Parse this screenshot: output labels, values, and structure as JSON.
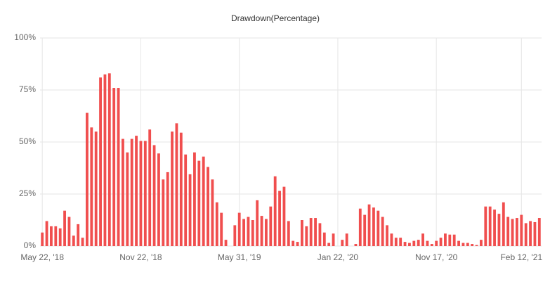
{
  "chart_data": {
    "type": "bar",
    "title": "Drawdown(Percentage)",
    "categories": [
      "May 22, '18",
      null,
      null,
      null,
      null,
      null,
      null,
      null,
      null,
      null,
      null,
      null,
      null,
      null,
      null,
      null,
      null,
      null,
      null,
      null,
      null,
      null,
      "Nov 22, '18",
      null,
      null,
      null,
      null,
      null,
      null,
      null,
      null,
      null,
      null,
      null,
      null,
      null,
      null,
      null,
      null,
      null,
      null,
      null,
      null,
      null,
      "May 31, '19",
      null,
      null,
      null,
      null,
      null,
      null,
      null,
      null,
      null,
      null,
      null,
      null,
      null,
      null,
      null,
      null,
      null,
      null,
      null,
      null,
      null,
      "Jan 22, '20",
      null,
      null,
      null,
      null,
      null,
      null,
      null,
      null,
      null,
      null,
      null,
      null,
      null,
      null,
      null,
      null,
      null,
      null,
      null,
      null,
      null,
      "Nov 17, '20",
      null,
      null,
      null,
      null,
      null,
      null,
      null,
      null,
      null,
      null,
      null,
      null,
      null,
      null,
      null,
      null,
      null,
      null,
      "Feb 12, '21",
      null,
      null,
      null,
      null
    ],
    "values": [
      6.5,
      12,
      9.5,
      9.5,
      8.5,
      17,
      14,
      5,
      10.5,
      4,
      64,
      57,
      55,
      81,
      82.5,
      83,
      76,
      76,
      51.5,
      45,
      51.5,
      53,
      50.5,
      50.5,
      56,
      48.5,
      44.5,
      32,
      35.5,
      55,
      59,
      54.5,
      44,
      34.5,
      45,
      41,
      43,
      38,
      32,
      21,
      16,
      3,
      0,
      10,
      16,
      13,
      14,
      12.5,
      22,
      14.5,
      13,
      19,
      33.5,
      26.5,
      28.5,
      12,
      2.5,
      2,
      12.5,
      9.5,
      13.5,
      13.5,
      11,
      6.5,
      1.5,
      6,
      0,
      3,
      6,
      0,
      1,
      18,
      15,
      20,
      18.5,
      17,
      14,
      10,
      6,
      4,
      4,
      2,
      1.5,
      2.5,
      3,
      6,
      2.5,
      1,
      2.5,
      4,
      6,
      5.5,
      5.5,
      2.5,
      1.5,
      1.5,
      1,
      0.5,
      3,
      19,
      19,
      17.5,
      15.5,
      21,
      14,
      13,
      13.5,
      15,
      11,
      12,
      11.5,
      13.5
    ],
    "color": "#f04e4e",
    "ylim": [
      0,
      100
    ],
    "yticks": [
      {
        "value": 0,
        "label": "0%"
      },
      {
        "value": 25,
        "label": "25%"
      },
      {
        "value": 50,
        "label": "50%"
      },
      {
        "value": 75,
        "label": "75%"
      },
      {
        "value": 100,
        "label": "100%"
      }
    ],
    "grid": true
  }
}
